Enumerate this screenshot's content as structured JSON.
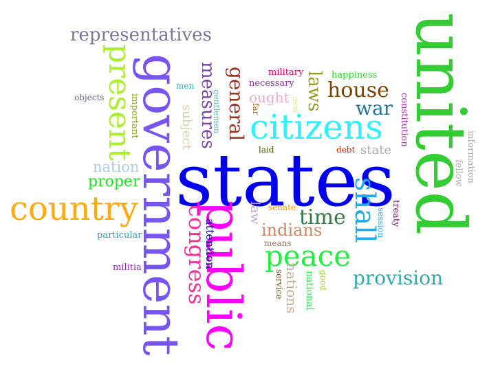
{
  "words": [
    {
      "key": "united",
      "text": "united",
      "color": "#33cc33"
    },
    {
      "key": "states",
      "text": "states",
      "color": "#0000ee"
    },
    {
      "key": "government",
      "text": "government",
      "color": "#7755ee"
    },
    {
      "key": "public",
      "text": "public",
      "color": "#ff00ff"
    },
    {
      "key": "citizens",
      "text": "citizens",
      "color": "#33eeff"
    },
    {
      "key": "country",
      "text": "country",
      "color": "#ffaa11"
    },
    {
      "key": "representatives",
      "text": "representatives",
      "color": "#777799"
    },
    {
      "key": "present",
      "text": "present",
      "color": "#aaee33"
    },
    {
      "key": "peace",
      "text": "peace",
      "color": "#22ee44"
    },
    {
      "key": "shall",
      "text": "shall",
      "color": "#22aaee"
    },
    {
      "key": "house",
      "text": "house",
      "color": "#774400"
    },
    {
      "key": "war",
      "text": "war",
      "color": "#227799"
    },
    {
      "key": "measures",
      "text": "measures",
      "color": "#7744aa"
    },
    {
      "key": "general",
      "text": "general",
      "color": "#993322"
    },
    {
      "key": "congress",
      "text": "congress",
      "color": "#ee3399"
    },
    {
      "key": "provision",
      "text": "provision",
      "color": "#33aaaa"
    },
    {
      "key": "time",
      "text": "time",
      "color": "#337744"
    },
    {
      "key": "indians",
      "text": "indians",
      "color": "#cc8866"
    },
    {
      "key": "nation",
      "text": "nation",
      "color": "#aaccee"
    },
    {
      "key": "proper",
      "text": "proper",
      "color": "#22dd22"
    },
    {
      "key": "laws",
      "text": "laws",
      "color": "#999922"
    },
    {
      "key": "ought",
      "text": "ought",
      "color": "#eeaacc"
    },
    {
      "key": "nations",
      "text": "nations",
      "color": "#ccaa99"
    },
    {
      "key": "state",
      "text": "state",
      "color": "#aaaaaa"
    },
    {
      "key": "subject",
      "text": "subject",
      "color": "#ddccaa"
    },
    {
      "key": "attention",
      "text": "attention",
      "color": "#000088"
    },
    {
      "key": "law",
      "text": "law",
      "color": "#ccaacc"
    },
    {
      "key": "national",
      "text": "national",
      "color": "#33dd55"
    },
    {
      "key": "military",
      "text": "military",
      "color": "#cc0066"
    },
    {
      "key": "happiness",
      "text": "happiness",
      "color": "#33cc33"
    },
    {
      "key": "necessary",
      "text": "necessary",
      "color": "#883399"
    },
    {
      "key": "men",
      "text": "men",
      "color": "#33aaaa"
    },
    {
      "key": "objects",
      "text": "objects",
      "color": "#666688"
    },
    {
      "key": "important",
      "text": "important",
      "color": "#88aa33"
    },
    {
      "key": "gentlemen",
      "text": "gentlemen",
      "color": "#66bbbb"
    },
    {
      "key": "far",
      "text": "far",
      "color": "#aa6622"
    },
    {
      "key": "new",
      "text": "new",
      "color": "#ddee88"
    },
    {
      "key": "constitution",
      "text": "constitution",
      "color": "#aa33aa"
    },
    {
      "key": "information",
      "text": "information",
      "color": "#aaaaaa"
    },
    {
      "key": "fellow",
      "text": "fellow",
      "color": "#aaaaaa"
    },
    {
      "key": "laid",
      "text": "laid",
      "color": "#335500"
    },
    {
      "key": "debt",
      "text": "debt",
      "color": "#cc2200"
    },
    {
      "key": "senate",
      "text": "senate",
      "color": "#ee9900"
    },
    {
      "key": "means",
      "text": "means",
      "color": "#997766"
    },
    {
      "key": "session",
      "text": "session",
      "color": "#33aaee"
    },
    {
      "key": "treaty",
      "text": "treaty",
      "color": "#772266"
    },
    {
      "key": "particular",
      "text": "particular",
      "color": "#3399bb"
    },
    {
      "key": "militia",
      "text": "militia",
      "color": "#8833aa"
    },
    {
      "key": "service",
      "text": "service",
      "color": "#774400"
    },
    {
      "key": "good",
      "text": "good",
      "color": "#99cc33"
    }
  ]
}
